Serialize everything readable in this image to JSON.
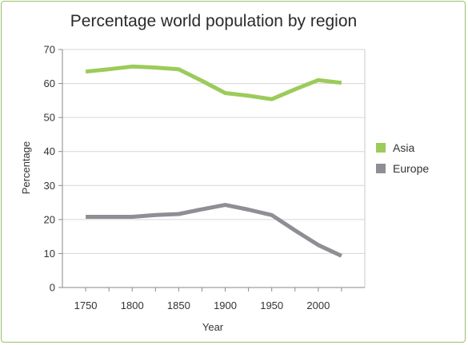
{
  "chart_data": {
    "type": "line",
    "title": "Percentage world population by region",
    "xlabel": "Year",
    "ylabel": "Percentage",
    "x": [
      1750,
      1775,
      1800,
      1825,
      1850,
      1875,
      1900,
      1925,
      1950,
      1975,
      2000,
      2025
    ],
    "x_ticks": [
      "1750",
      "1800",
      "1850",
      "1900",
      "1950",
      "2000"
    ],
    "y_ticks": [
      "0",
      "10",
      "20",
      "30",
      "40",
      "50",
      "60",
      "70"
    ],
    "xlim": [
      1725,
      2050
    ],
    "ylim": [
      0,
      70
    ],
    "grid": true,
    "legend_position": "right",
    "series": [
      {
        "name": "Asia",
        "color": "#9ccb5a",
        "values": [
          63.5,
          64.2,
          65.0,
          64.7,
          64.2,
          60.8,
          57.2,
          56.4,
          55.4,
          58.3,
          61.0,
          60.2
        ]
      },
      {
        "name": "Europe",
        "color": "#8e8e94",
        "values": [
          20.8,
          20.8,
          20.8,
          21.3,
          21.6,
          23.0,
          24.3,
          22.9,
          21.3,
          16.8,
          12.5,
          9.3
        ]
      }
    ]
  }
}
